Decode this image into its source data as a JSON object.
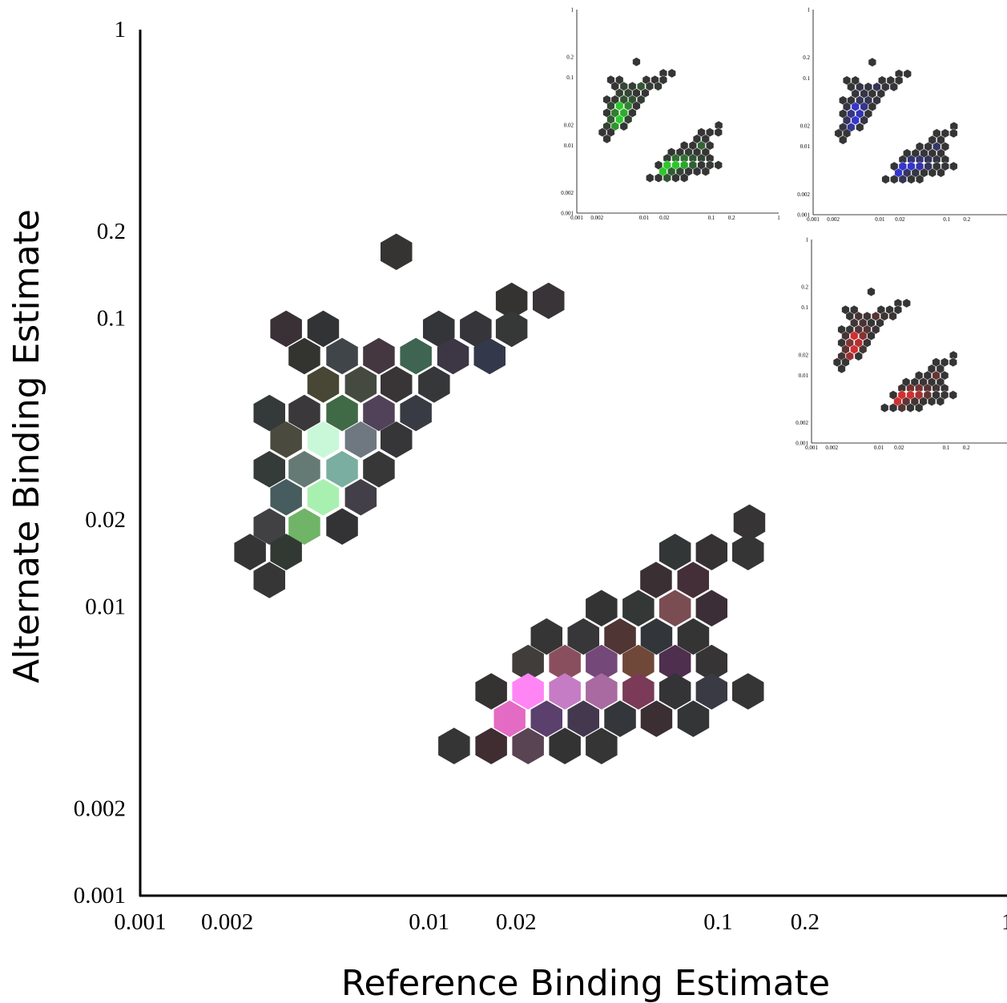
{
  "chart_data": [
    {
      "type": "hexbin",
      "role": "main",
      "xlabel": "Reference Binding Estimate",
      "ylabel": "Alternate Binding Estimate",
      "xscale": "log",
      "yscale": "log",
      "xlim": [
        0.001,
        1
      ],
      "ylim": [
        0.001,
        1
      ],
      "xticks": [
        "0.001",
        "0.002",
        "0.01",
        "0.02",
        "0.1",
        "0.2",
        "1"
      ],
      "yticks": [
        "0.001",
        "0.002",
        "0.01",
        "0.02",
        "0.1",
        "0.2",
        "1"
      ],
      "cells": [
        {
          "x": 0.0077,
          "y": 0.17,
          "color": "#353433"
        },
        {
          "x": 0.0193,
          "y": 0.115,
          "color": "#353232"
        },
        {
          "x": 0.0259,
          "y": 0.115,
          "color": "#393437"
        },
        {
          "x": 0.0032,
          "y": 0.092,
          "color": "#3a3136"
        },
        {
          "x": 0.0043,
          "y": 0.092,
          "color": "#323334"
        },
        {
          "x": 0.0108,
          "y": 0.092,
          "color": "#333538"
        },
        {
          "x": 0.0145,
          "y": 0.092,
          "color": "#35353a"
        },
        {
          "x": 0.0193,
          "y": 0.092,
          "color": "#363737"
        },
        {
          "x": 0.0037,
          "y": 0.074,
          "color": "#33332f"
        },
        {
          "x": 0.005,
          "y": 0.074,
          "color": "#404549"
        },
        {
          "x": 0.0067,
          "y": 0.074,
          "color": "#44373f"
        },
        {
          "x": 0.009,
          "y": 0.074,
          "color": "#3f6451"
        },
        {
          "x": 0.0121,
          "y": 0.074,
          "color": "#3c3645"
        },
        {
          "x": 0.0162,
          "y": 0.074,
          "color": "#33394a"
        },
        {
          "x": 0.0043,
          "y": 0.059,
          "color": "#484634"
        },
        {
          "x": 0.0058,
          "y": 0.059,
          "color": "#454a41"
        },
        {
          "x": 0.0077,
          "y": 0.059,
          "color": "#393436"
        },
        {
          "x": 0.0104,
          "y": 0.059,
          "color": "#363739"
        },
        {
          "x": 0.0028,
          "y": 0.047,
          "color": "#343939"
        },
        {
          "x": 0.0037,
          "y": 0.047,
          "color": "#3b383c"
        },
        {
          "x": 0.005,
          "y": 0.047,
          "color": "#3f6a45"
        },
        {
          "x": 0.0067,
          "y": 0.047,
          "color": "#514259"
        },
        {
          "x": 0.009,
          "y": 0.047,
          "color": "#393b44"
        },
        {
          "x": 0.0032,
          "y": 0.038,
          "color": "#4a4a3e"
        },
        {
          "x": 0.0043,
          "y": 0.038,
          "color": "#c8f8d8"
        },
        {
          "x": 0.0058,
          "y": 0.038,
          "color": "#6f7880"
        },
        {
          "x": 0.0077,
          "y": 0.038,
          "color": "#363638"
        },
        {
          "x": 0.0028,
          "y": 0.03,
          "color": "#343b38"
        },
        {
          "x": 0.0037,
          "y": 0.03,
          "color": "#667a75"
        },
        {
          "x": 0.005,
          "y": 0.03,
          "color": "#7aaea0"
        },
        {
          "x": 0.0067,
          "y": 0.03,
          "color": "#373738"
        },
        {
          "x": 0.0032,
          "y": 0.024,
          "color": "#465c5e"
        },
        {
          "x": 0.0043,
          "y": 0.024,
          "color": "#a8f0b0"
        },
        {
          "x": 0.0058,
          "y": 0.024,
          "color": "#423f48"
        },
        {
          "x": 0.0028,
          "y": 0.019,
          "color": "#414143"
        },
        {
          "x": 0.0037,
          "y": 0.019,
          "color": "#70b468"
        },
        {
          "x": 0.005,
          "y": 0.019,
          "color": "#333234"
        },
        {
          "x": 0.0024,
          "y": 0.0155,
          "color": "#353535"
        },
        {
          "x": 0.0032,
          "y": 0.0155,
          "color": "#323932"
        },
        {
          "x": 0.0028,
          "y": 0.0124,
          "color": "#363636"
        },
        {
          "x": 0.1284,
          "y": 0.0196,
          "color": "#363434"
        },
        {
          "x": 0.071,
          "y": 0.0155,
          "color": "#323636"
        },
        {
          "x": 0.095,
          "y": 0.0155,
          "color": "#363233"
        },
        {
          "x": 0.127,
          "y": 0.0155,
          "color": "#353535"
        },
        {
          "x": 0.061,
          "y": 0.0124,
          "color": "#3a2f33"
        },
        {
          "x": 0.082,
          "y": 0.0124,
          "color": "#442f38"
        },
        {
          "x": 0.0395,
          "y": 0.0099,
          "color": "#333334"
        },
        {
          "x": 0.053,
          "y": 0.0099,
          "color": "#333735"
        },
        {
          "x": 0.071,
          "y": 0.0099,
          "color": "#7a4d52"
        },
        {
          "x": 0.095,
          "y": 0.0099,
          "color": "#3c2e36"
        },
        {
          "x": 0.0255,
          "y": 0.0079,
          "color": "#353535"
        },
        {
          "x": 0.0342,
          "y": 0.0079,
          "color": "#373638"
        },
        {
          "x": 0.0458,
          "y": 0.0079,
          "color": "#503535"
        },
        {
          "x": 0.0612,
          "y": 0.0079,
          "color": "#323539"
        },
        {
          "x": 0.0821,
          "y": 0.0079,
          "color": "#353434"
        },
        {
          "x": 0.022,
          "y": 0.0064,
          "color": "#413d3a"
        },
        {
          "x": 0.0295,
          "y": 0.0064,
          "color": "#8a4f5e"
        },
        {
          "x": 0.0395,
          "y": 0.0064,
          "color": "#744878"
        },
        {
          "x": 0.053,
          "y": 0.0064,
          "color": "#70483a"
        },
        {
          "x": 0.071,
          "y": 0.0064,
          "color": "#4e2f4e"
        },
        {
          "x": 0.095,
          "y": 0.0064,
          "color": "#363434"
        },
        {
          "x": 0.0164,
          "y": 0.0051,
          "color": "#353232"
        },
        {
          "x": 0.022,
          "y": 0.0051,
          "color": "#ff85f5"
        },
        {
          "x": 0.0295,
          "y": 0.0051,
          "color": "#c67bc5"
        },
        {
          "x": 0.0395,
          "y": 0.0051,
          "color": "#a86aa0"
        },
        {
          "x": 0.053,
          "y": 0.0051,
          "color": "#7a3a58"
        },
        {
          "x": 0.071,
          "y": 0.0051,
          "color": "#343336"
        },
        {
          "x": 0.095,
          "y": 0.0051,
          "color": "#393a44"
        },
        {
          "x": 0.127,
          "y": 0.0051,
          "color": "#353535"
        },
        {
          "x": 0.019,
          "y": 0.0041,
          "color": "#e46bc3"
        },
        {
          "x": 0.0255,
          "y": 0.0041,
          "color": "#5b3f6d"
        },
        {
          "x": 0.0342,
          "y": 0.0041,
          "color": "#44384f"
        },
        {
          "x": 0.0458,
          "y": 0.0041,
          "color": "#33363a"
        },
        {
          "x": 0.0612,
          "y": 0.0041,
          "color": "#3b2f33"
        },
        {
          "x": 0.0821,
          "y": 0.0041,
          "color": "#333537"
        },
        {
          "x": 0.0122,
          "y": 0.0033,
          "color": "#353535"
        },
        {
          "x": 0.0164,
          "y": 0.0033,
          "color": "#3f2d31"
        },
        {
          "x": 0.022,
          "y": 0.0033,
          "color": "#584452"
        },
        {
          "x": 0.0295,
          "y": 0.0033,
          "color": "#333334"
        },
        {
          "x": 0.0395,
          "y": 0.0033,
          "color": "#343534"
        }
      ]
    },
    {
      "type": "hexbin",
      "role": "inset",
      "channel_color": "#2bd12b",
      "xscale": "log",
      "yscale": "log",
      "xlim": [
        0.001,
        1
      ],
      "ylim": [
        0.001,
        1
      ],
      "xticks": [
        "0.001",
        "0.002",
        "0.01",
        "0.02",
        "0.1",
        "0.2",
        "1"
      ],
      "yticks": [
        "0.001",
        "0.002",
        "0.01",
        "0.02",
        "0.1",
        "0.2",
        "1"
      ]
    },
    {
      "type": "hexbin",
      "role": "inset",
      "channel_color": "#3535d8",
      "xscale": "log",
      "yscale": "log",
      "xlim": [
        0.001,
        1
      ],
      "ylim": [
        0.001,
        1
      ],
      "xticks": [
        "0.001",
        "0.002",
        "0.01",
        "0.02",
        "0.1",
        "0.2"
      ],
      "yticks": [
        "0.001",
        "0.002",
        "0.01",
        "0.02",
        "0.1",
        "0.2",
        "1"
      ]
    },
    {
      "type": "hexbin",
      "role": "inset",
      "channel_color": "#d83030",
      "xscale": "log",
      "yscale": "log",
      "xlim": [
        0.001,
        1
      ],
      "ylim": [
        0.001,
        1
      ],
      "xticks": [
        "0.001",
        "0.002",
        "0.01",
        "0.02",
        "0.1",
        "0.2"
      ],
      "yticks": [
        "0.001",
        "0.002",
        "0.01",
        "0.02",
        "0.1",
        "0.2",
        "1"
      ]
    }
  ]
}
